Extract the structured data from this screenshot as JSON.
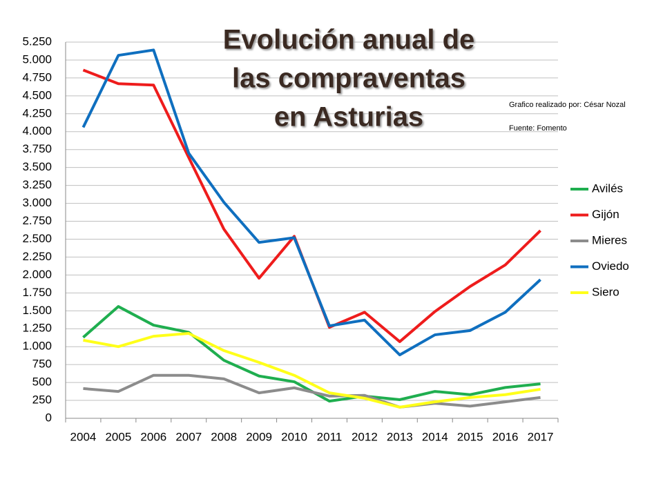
{
  "chart_data": {
    "type": "line",
    "title": [
      "Evolución anual de",
      "las compraventas",
      "en Asturias"
    ],
    "annotations": [
      "Grafico realizado por: César Nozal",
      "Fuente: Fomento"
    ],
    "categories": [
      "2004",
      "2005",
      "2006",
      "2007",
      "2008",
      "2009",
      "2010",
      "2011",
      "2012",
      "2013",
      "2014",
      "2015",
      "2016",
      "2017"
    ],
    "series": [
      {
        "name": "Avilés",
        "color": "#1fae4f",
        "values": [
          1130,
          1560,
          1300,
          1200,
          810,
          590,
          510,
          240,
          310,
          260,
          375,
          330,
          430,
          480
        ]
      },
      {
        "name": "Gijón",
        "color": "#ee1c1c",
        "values": [
          4860,
          4670,
          4650,
          3640,
          2640,
          1955,
          2540,
          1270,
          1480,
          1070,
          1490,
          1840,
          2140,
          2620
        ]
      },
      {
        "name": "Mieres",
        "color": "#8c8c8c",
        "values": [
          415,
          375,
          600,
          600,
          550,
          355,
          425,
          310,
          320,
          155,
          210,
          170,
          230,
          290
        ]
      },
      {
        "name": "Oviedo",
        "color": "#0f6fbf",
        "values": [
          4060,
          5065,
          5140,
          3700,
          3015,
          2455,
          2520,
          1290,
          1370,
          885,
          1165,
          1225,
          1480,
          1935
        ]
      },
      {
        "name": "Siero",
        "color": "#ffff1a",
        "values": [
          1090,
          1000,
          1145,
          1185,
          945,
          780,
          600,
          355,
          280,
          155,
          230,
          290,
          330,
          405
        ]
      }
    ],
    "ylim": [
      0,
      5250
    ],
    "yticks": [
      0,
      250,
      500,
      750,
      {
        "value": 1000,
        "label": "1.000"
      },
      {
        "value": 1250,
        "label": "1.250"
      },
      {
        "value": 1500,
        "label": "1.500"
      },
      {
        "value": 1750,
        "label": "1.750"
      },
      {
        "value": 2000,
        "label": "2.000"
      },
      {
        "value": 2250,
        "label": "2.250"
      },
      {
        "value": 2500,
        "label": "2.500"
      },
      {
        "value": 2750,
        "label": "2.750"
      },
      {
        "value": 3000,
        "label": "3.000"
      },
      {
        "value": 3250,
        "label": "3.250"
      },
      {
        "value": 3500,
        "label": "3.500"
      },
      {
        "value": 3750,
        "label": "3.750"
      },
      {
        "value": 4000,
        "label": "4.000"
      },
      {
        "value": 4250,
        "label": "4.250"
      },
      {
        "value": 4500,
        "label": "4.500"
      },
      {
        "value": 4750,
        "label": "4.750"
      },
      {
        "value": 5000,
        "label": "5.000"
      },
      {
        "value": 5250,
        "label": "5.250"
      }
    ],
    "grid": true,
    "legend": "right"
  }
}
